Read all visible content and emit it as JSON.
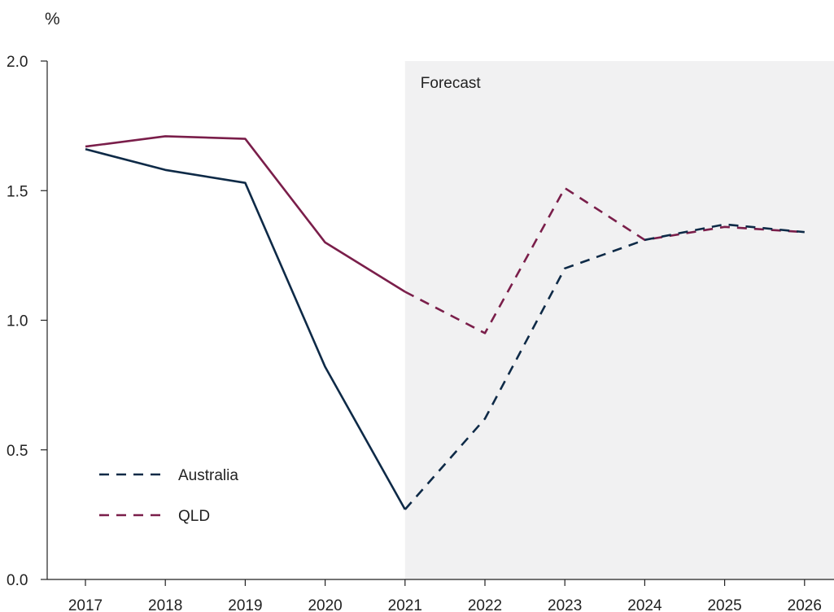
{
  "chart_data": {
    "type": "line",
    "y_unit_label": "%",
    "ylim": [
      0,
      2.0
    ],
    "y_ticks": [
      "0.0",
      "0.5",
      "1.0",
      "1.5",
      "2.0"
    ],
    "x": [
      "2017",
      "2018",
      "2019",
      "2020",
      "2021",
      "2022",
      "2023",
      "2024",
      "2025",
      "2026"
    ],
    "forecast_label": "Forecast",
    "forecast_from": "2021",
    "series": [
      {
        "name": "Australia",
        "color": "#0e2a47",
        "values": [
          1.66,
          1.58,
          1.53,
          0.82,
          0.27,
          0.62,
          1.2,
          1.31,
          1.37,
          1.34
        ]
      },
      {
        "name": "QLD",
        "color": "#7a1e4a",
        "values": [
          1.67,
          1.71,
          1.7,
          1.3,
          1.11,
          0.95,
          1.51,
          1.31,
          1.36,
          1.34
        ]
      }
    ],
    "legend_placement": "bottom-left",
    "grid": false,
    "forecast_shade_color": "#f1f1f2"
  }
}
